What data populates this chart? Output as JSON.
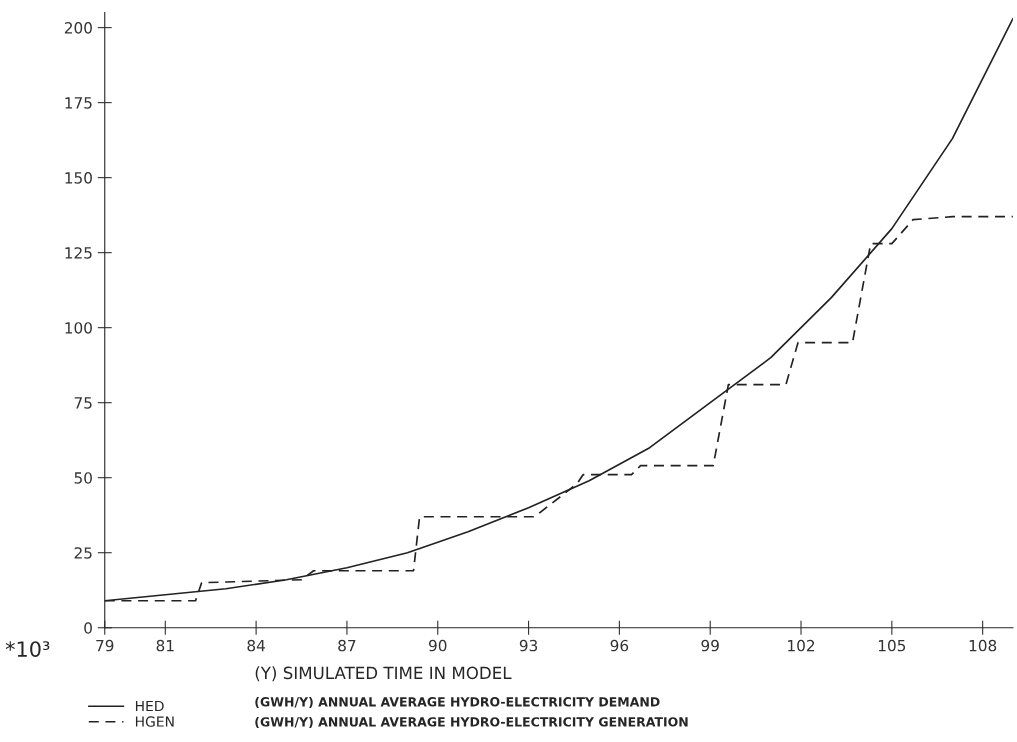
{
  "chart_data": {
    "type": "line",
    "xlabel": "(Y) SIMULATED TIME IN MODEL",
    "ylabel": "*10³",
    "annotations": [
      "(GWH/Y) ANNUAL AVERAGE HYDRO-ELECTRICITY DEMAND",
      "(GWH/Y) ANNUAL AVERAGE HYDRO-ELECTRICITY GENERATION"
    ],
    "series": [
      {
        "name": "HED",
        "color": "#222222",
        "line_style": "solid",
        "x": [
          79,
          81,
          83,
          85,
          87,
          89,
          91,
          93,
          95,
          97,
          99,
          101,
          103,
          105,
          107,
          109
        ],
        "values": [
          9,
          11,
          13,
          16,
          20,
          25,
          32,
          40,
          49,
          60,
          75,
          90,
          110,
          133,
          163,
          203
        ]
      },
      {
        "name": "HGEN",
        "color": "#222222",
        "line_style": "dashed",
        "x": [
          79,
          82,
          82.2,
          85.5,
          85.9,
          89.2,
          89.4,
          93.2,
          94.6,
          94.8,
          96.4,
          96.7,
          99.1,
          99.6,
          101.5,
          101.9,
          103.7,
          104.3,
          105.0,
          105.7,
          107,
          109
        ],
        "values": [
          9,
          9,
          15,
          16,
          19,
          19,
          37,
          37,
          48,
          51,
          51,
          54,
          54,
          81,
          81,
          95,
          95,
          128,
          128,
          136,
          137,
          137
        ]
      }
    ],
    "xlim": [
      79,
      109
    ],
    "ylim": [
      0,
      205
    ],
    "xticks": [
      79,
      81,
      84,
      87,
      90,
      93,
      96,
      99,
      102,
      105,
      108
    ],
    "yticks": [
      0,
      25,
      50,
      75,
      100,
      125,
      150,
      175,
      200
    ],
    "grid": false,
    "legend": "bottom left",
    "marker": "none"
  }
}
